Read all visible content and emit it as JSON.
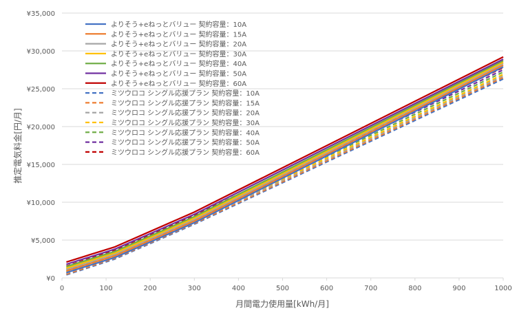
{
  "chart_data": {
    "type": "line",
    "title": "",
    "xlabel": "月間電力使用量[kWh/月]",
    "ylabel": "推定電気料金[円/月]",
    "xlim": [
      0,
      1000
    ],
    "ylim": [
      0,
      35000
    ],
    "x_ticks": [
      "0",
      "100",
      "200",
      "300",
      "400",
      "500",
      "600",
      "700",
      "800",
      "900",
      "1000"
    ],
    "y_ticks": [
      "¥0",
      "¥5,000",
      "¥10,000",
      "¥15,000",
      "¥20,000",
      "¥25,000",
      "¥30,000",
      "¥35,000"
    ],
    "grid": "horizontal",
    "legend_position": "top-left",
    "x": [
      10,
      120,
      300,
      1000
    ],
    "series": [
      {
        "name": "よりそう+eねっとバリュー 契約容量：10A",
        "color": "#4472C4",
        "dash": false,
        "values": [
          700,
          2700,
          7300,
          27900
        ]
      },
      {
        "name": "よりそう+eねっとバリュー 契約容量：15A",
        "color": "#ED7D31",
        "dash": false,
        "values": [
          930,
          2930,
          7530,
          28130
        ]
      },
      {
        "name": "よりそう+eねっとバリュー 契約容量：20A",
        "color": "#A5A5A5",
        "dash": false,
        "values": [
          1150,
          3150,
          7750,
          28350
        ]
      },
      {
        "name": "よりそう+eねっとバリュー 契約容量：30A",
        "color": "#FFC000",
        "dash": false,
        "values": [
          1300,
          3300,
          7900,
          28500
        ]
      },
      {
        "name": "よりそう+eねっとバリュー 契約容量：40A",
        "color": "#70AD47",
        "dash": false,
        "values": [
          1500,
          3500,
          8100,
          28700
        ]
      },
      {
        "name": "よりそう+eねっとバリュー 契約容量：50A",
        "color": "#7030A0",
        "dash": false,
        "values": [
          1800,
          3800,
          8400,
          28900
        ]
      },
      {
        "name": "よりそう+eねっとバリュー 契約容量：60A",
        "color": "#C00000",
        "dash": false,
        "values": [
          2100,
          4100,
          8700,
          29200
        ]
      },
      {
        "name": "ミツウロコ シングル応援プラン 契約容量：10A",
        "color": "#4472C4",
        "dash": true,
        "values": [
          400,
          2500,
          7100,
          26300
        ]
      },
      {
        "name": "ミツウロコ シングル応援プラン 契約容量：15A",
        "color": "#ED7D31",
        "dash": true,
        "values": [
          500,
          2600,
          7200,
          26500
        ]
      },
      {
        "name": "ミツウロコ シングル応援プラン 契約容量：20A",
        "color": "#A5A5A5",
        "dash": true,
        "values": [
          650,
          2750,
          7350,
          26700
        ]
      },
      {
        "name": "ミツウロコ シングル応援プラン 契約容量：30A",
        "color": "#FFC000",
        "dash": true,
        "values": [
          800,
          2900,
          7500,
          26900
        ]
      },
      {
        "name": "ミツウロコ シングル応援プラン 契約容量：40A",
        "color": "#70AD47",
        "dash": true,
        "values": [
          1000,
          3100,
          7700,
          27200
        ]
      },
      {
        "name": "ミツウロコ シングル応援プラン 契約容量：50A",
        "color": "#7030A0",
        "dash": true,
        "values": [
          1250,
          3350,
          7950,
          27500
        ]
      },
      {
        "name": "ミツウロコ シングル応援プラン 契約容量：60A",
        "color": "#C00000",
        "dash": true,
        "values": [
          1550,
          3650,
          8250,
          27800
        ]
      }
    ]
  }
}
